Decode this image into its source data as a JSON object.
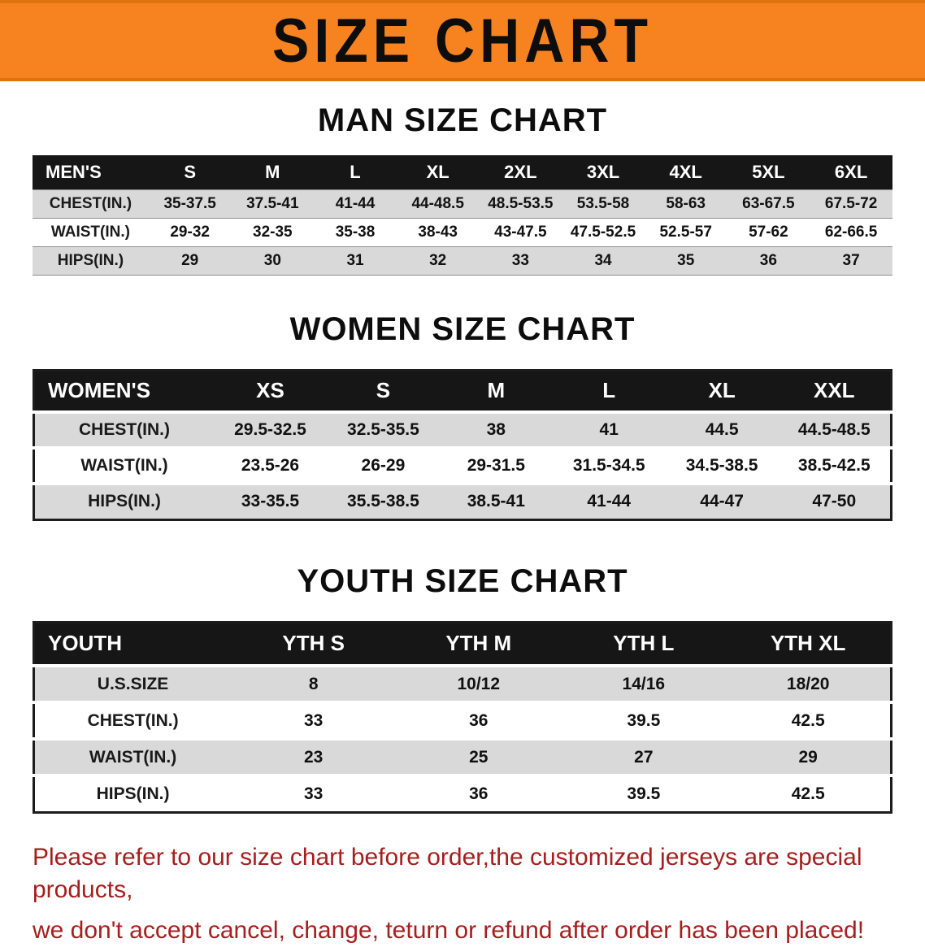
{
  "banner": {
    "title": "SIZE CHART"
  },
  "sections": [
    {
      "heading": "MAN SIZE CHART",
      "table": {
        "header": [
          "MEN'S",
          "S",
          "M",
          "L",
          "XL",
          "2XL",
          "3XL",
          "4XL",
          "5XL",
          "6XL"
        ],
        "rows": [
          [
            "CHEST(IN.)",
            "35-37.5",
            "37.5-41",
            "41-44",
            "44-48.5",
            "48.5-53.5",
            "53.5-58",
            "58-63",
            "63-67.5",
            "67.5-72"
          ],
          [
            "WAIST(IN.)",
            "29-32",
            "32-35",
            "35-38",
            "38-43",
            "43-47.5",
            "47.5-52.5",
            "52.5-57",
            "57-62",
            "62-66.5"
          ],
          [
            "HIPS(IN.)",
            "29",
            "30",
            "31",
            "32",
            "33",
            "34",
            "35",
            "36",
            "37"
          ]
        ]
      }
    },
    {
      "heading": "WOMEN SIZE CHART",
      "table": {
        "header": [
          "WOMEN'S",
          "XS",
          "S",
          "M",
          "L",
          "XL",
          "XXL"
        ],
        "rows": [
          [
            "CHEST(IN.)",
            "29.5-32.5",
            "32.5-35.5",
            "38",
            "41",
            "44.5",
            "44.5-48.5"
          ],
          [
            "WAIST(IN.)",
            "23.5-26",
            "26-29",
            "29-31.5",
            "31.5-34.5",
            "34.5-38.5",
            "38.5-42.5"
          ],
          [
            "HIPS(IN.)",
            "33-35.5",
            "35.5-38.5",
            "38.5-41",
            "41-44",
            "44-47",
            "47-50"
          ]
        ]
      }
    },
    {
      "heading": "YOUTH SIZE CHART",
      "table": {
        "header": [
          "YOUTH",
          "YTH S",
          "YTH M",
          "YTH L",
          "YTH XL"
        ],
        "rows": [
          [
            "U.S.SIZE",
            "8",
            "10/12",
            "14/16",
            "18/20"
          ],
          [
            "CHEST(IN.)",
            "33",
            "36",
            "39.5",
            "42.5"
          ],
          [
            "WAIST(IN.)",
            "23",
            "25",
            "27",
            "29"
          ],
          [
            "HIPS(IN.)",
            "33",
            "36",
            "39.5",
            "42.5"
          ]
        ]
      }
    }
  ],
  "footer": {
    "lines": [
      "Please refer to our size chart before order,the customized jerseys are special products,",
      "we don't accept cancel, change, teturn or refund after order has been placed!"
    ]
  }
}
